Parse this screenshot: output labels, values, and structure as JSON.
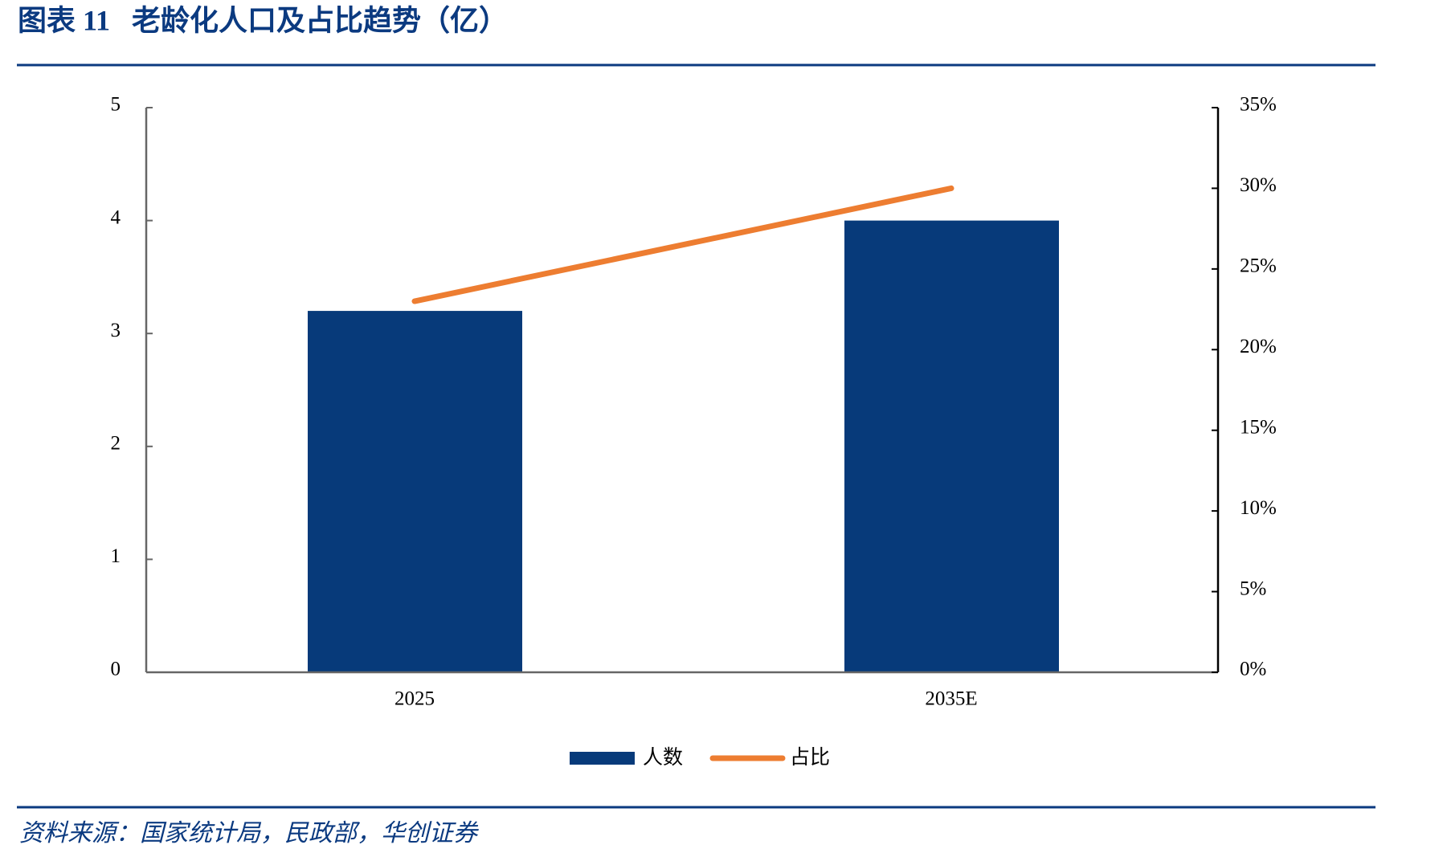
{
  "chart_data": {
    "type": "bar",
    "title": "图表 11   老龄化人口及占比趋势（亿）",
    "source": "资料来源：国家统计局，民政部，华创证券",
    "categories": [
      "2025",
      "2035E"
    ],
    "series": [
      {
        "name": "人数",
        "type": "bar",
        "color": "#073a7a",
        "values": [
          3.2,
          4.0
        ]
      },
      {
        "name": "占比",
        "type": "line",
        "axis": "y2",
        "color": "#ed7d31",
        "values": [
          23,
          30
        ]
      }
    ],
    "ylim": [
      0,
      5
    ],
    "yticks": [
      0,
      1,
      2,
      3,
      4,
      5
    ],
    "y2lim": [
      0,
      35
    ],
    "y2ticks": [
      {
        "value": 0,
        "label": "0%"
      },
      {
        "value": 5,
        "label": "5%"
      },
      {
        "value": 10,
        "label": "10%"
      },
      {
        "value": 15,
        "label": "15%"
      },
      {
        "value": 20,
        "label": "20%"
      },
      {
        "value": 25,
        "label": "25%"
      },
      {
        "value": 30,
        "label": "30%"
      },
      {
        "value": 35,
        "label": "35%"
      }
    ],
    "grid": false
  }
}
